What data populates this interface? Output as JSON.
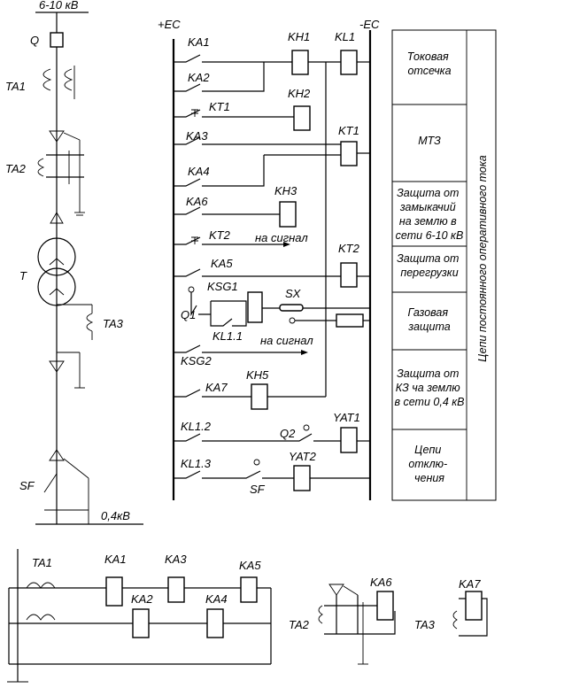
{
  "labels": {
    "voltage_hv": "6-10 кВ",
    "Q": "Q",
    "TA1": "TA1",
    "TA2": "TA2",
    "T": "T",
    "TA3": "TA3",
    "SF": "SF",
    "voltage_lv": "0,4кВ",
    "plus_ec": "+EC",
    "minus_ec": "-EC",
    "KA1": "KA1",
    "KA2": "KA2",
    "KA3": "KA3",
    "KA4": "KA4",
    "KA5": "KA5",
    "KA6": "KA6",
    "KA7": "KA7",
    "KH1": "KH1",
    "KH2": "KH2",
    "KH3": "KH3",
    "KH5": "KH5",
    "KL1": "KL1",
    "KT1_contact": "KT1",
    "KT1_coil": "KT1",
    "KT2_contact": "KT2",
    "KT2_coil": "KT2",
    "na_signal_1": "на сигнал",
    "na_signal_2": "на сигнал",
    "KSG1": "KSG1",
    "KSG2": "KSG2",
    "SX": "SX",
    "Q1": "Q1",
    "KL1_1": "KL1.1",
    "KL1_2": "KL1.2",
    "KL1_3": "KL1.3",
    "Q2": "Q2",
    "YAT1": "YAT1",
    "YAT2": "YAT2",
    "SF_ctrl": "SF",
    "b_TA1": "TA1",
    "b_KA1": "KA1",
    "b_KA2": "KA2",
    "b_KA3": "KA3",
    "b_KA4": "KA4",
    "b_KA5": "KA5",
    "b_KA6": "KA6",
    "b_KA7": "KA7",
    "b_TA2": "TA2",
    "b_TA3": "TA3"
  },
  "table": {
    "vertical_title": "Цепи постоянного оперативного тока",
    "rows": [
      [
        "Токовая",
        "отсечка"
      ],
      [
        "МТЗ"
      ],
      [
        "Защита от",
        "замыкачий",
        "на землю в",
        "сети 6-10 кВ"
      ],
      [
        "Защита от",
        "перегрузки"
      ],
      [
        "Газовая",
        "защита"
      ],
      [
        "Защита от",
        "КЗ ча землю",
        "в сети 0,4 кВ"
      ],
      [
        "Цепи",
        "отклю-",
        "чения"
      ]
    ]
  }
}
